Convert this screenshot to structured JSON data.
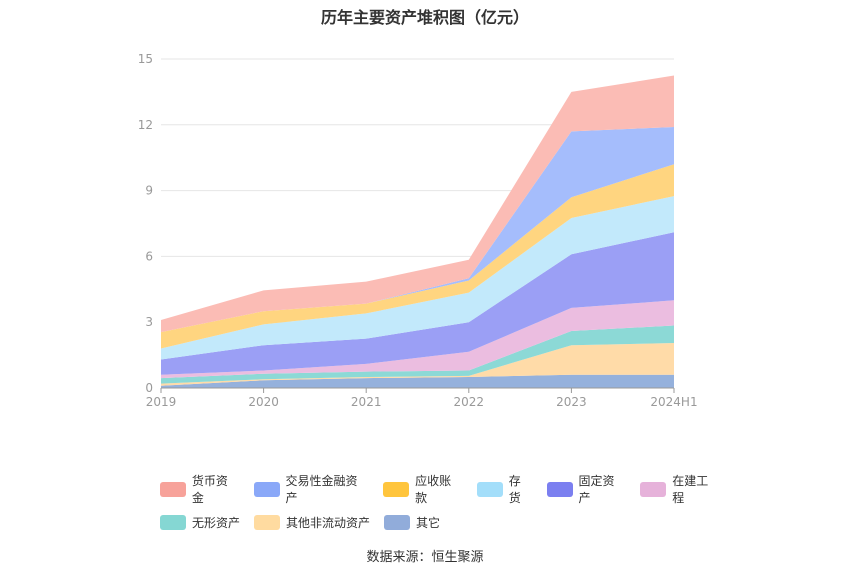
{
  "chart_data": {
    "type": "area",
    "stacked": true,
    "title": "历年主要资产堆积图（亿元）",
    "x": [
      "2019",
      "2020",
      "2021",
      "2022",
      "2023",
      "2024H1"
    ],
    "ylim": [
      0,
      15
    ],
    "yticks": [
      0,
      3,
      6,
      9,
      12,
      15
    ],
    "grid": true,
    "legend_position": "bottom",
    "series": [
      {
        "name": "其它",
        "color": "#95b1dc",
        "values": [
          0.1,
          0.35,
          0.45,
          0.5,
          0.6,
          0.6
        ]
      },
      {
        "name": "其他非流动资产",
        "color": "#ffdba8",
        "values": [
          0.1,
          0.05,
          0.05,
          0.05,
          1.35,
          1.45
        ]
      },
      {
        "name": "无形资产",
        "color": "#8cd9d6",
        "values": [
          0.25,
          0.25,
          0.25,
          0.25,
          0.65,
          0.8
        ]
      },
      {
        "name": "在建工程",
        "color": "#ebbde0",
        "values": [
          0.15,
          0.15,
          0.35,
          0.85,
          1.05,
          1.15
        ]
      },
      {
        "name": "固定资产",
        "color": "#9b9ff5",
        "values": [
          0.7,
          1.15,
          1.15,
          1.35,
          2.45,
          3.1
        ]
      },
      {
        "name": "存货",
        "color": "#c2e9fb",
        "values": [
          0.5,
          0.95,
          1.15,
          1.35,
          1.65,
          1.65
        ]
      },
      {
        "name": "应收账款",
        "color": "#ffd580",
        "values": [
          0.75,
          0.6,
          0.45,
          0.55,
          0.95,
          1.45
        ]
      },
      {
        "name": "交易性金融资产",
        "color": "#a5bdfc",
        "values": [
          0,
          0,
          0,
          0.1,
          3.0,
          1.7
        ]
      },
      {
        "name": "货币资金",
        "color": "#fbbcb5",
        "values": [
          0.55,
          0.95,
          1.0,
          0.85,
          1.8,
          2.35
        ]
      }
    ],
    "legend_order": [
      "货币资金",
      "交易性金融资产",
      "应收账款",
      "存货",
      "固定资产",
      "在建工程",
      "无形资产",
      "其他非流动资产",
      "其它"
    ],
    "legend_colors": {
      "货币资金": "#f7a29a",
      "交易性金融资产": "#8aa8f8",
      "应收账款": "#ffc53d",
      "存货": "#a3defa",
      "固定资产": "#7b7ff0",
      "在建工程": "#e6b2da",
      "无形资产": "#85d7d3",
      "其他非流动资产": "#ffdba0",
      "其它": "#91acda"
    }
  },
  "footer": {
    "source": "数据来源：恒生聚源"
  }
}
